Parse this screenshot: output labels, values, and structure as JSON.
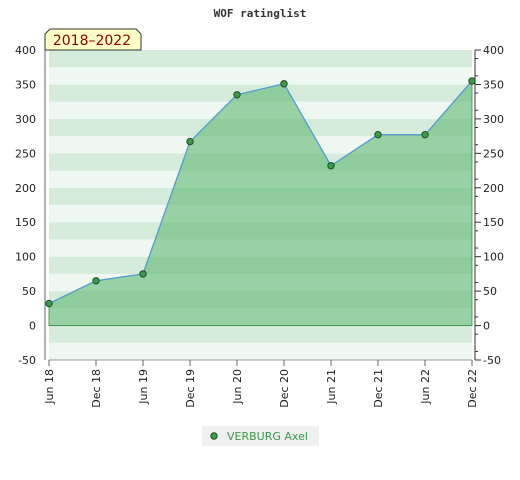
{
  "chart_data": {
    "type": "area",
    "title": "WOF ratinglist",
    "badge": "2018–2022",
    "categories": [
      "Jun 18",
      "Dec 18",
      "Jun 19",
      "Dec 19",
      "Jun 20",
      "Dec 20",
      "Jun 21",
      "Dec 21",
      "Jun 22",
      "Dec 22"
    ],
    "series": [
      {
        "name": "VERBURG Axel",
        "values": [
          32,
          65,
          75,
          267,
          335,
          351,
          232,
          277,
          277,
          355
        ]
      }
    ],
    "ylim": [
      -50,
      400
    ],
    "yticks": [
      -50,
      0,
      50,
      100,
      150,
      200,
      250,
      300,
      350,
      400
    ],
    "xlabel": "",
    "ylabel": "",
    "grid": true,
    "legend": "bottom-center",
    "colors": {
      "line": "#5a9fd0",
      "marker": "#3c9a4a",
      "area": "#5fb872",
      "band_light": "#eef7f0",
      "band_dark": "#d6ecdb",
      "badge_bg": "#ffffc8",
      "badge_text": "#8b0000",
      "legend_text": "#3a9a4a"
    }
  }
}
